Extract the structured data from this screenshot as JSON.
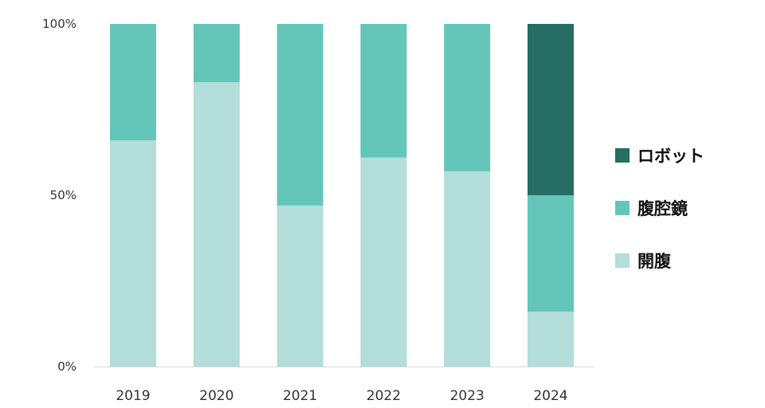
{
  "chart_data": {
    "type": "bar",
    "stacked": true,
    "percent": true,
    "categories": [
      "2019",
      "2020",
      "2021",
      "2022",
      "2023",
      "2024"
    ],
    "series": [
      {
        "name": "開腹",
        "color": "#b2ddd8",
        "values": [
          66,
          83,
          47,
          61,
          57,
          16
        ]
      },
      {
        "name": "腹腔鏡",
        "color": "#63c6b9",
        "values": [
          34,
          17,
          53,
          39,
          43,
          34
        ]
      },
      {
        "name": "ロボット",
        "color": "#266d63",
        "values": [
          0,
          0,
          0,
          0,
          0,
          50
        ]
      }
    ],
    "ylim": [
      0,
      100
    ],
    "yticks": [
      "0%",
      "50%",
      "100%"
    ],
    "legend_position": "right",
    "grid": false
  }
}
